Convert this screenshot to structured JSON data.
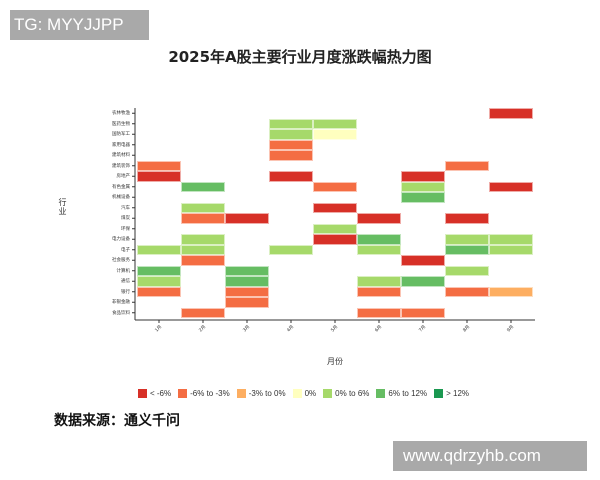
{
  "watermark_top": "TG: MYYJJPP",
  "watermark_bottom": "www.qdrzyhb.com",
  "source_text": "数据来源：通义千问",
  "chart_data": {
    "type": "heatmap",
    "title": "2025年A股主要行业月度涨跌幅热力图",
    "xlabel": "月份",
    "ylabel": "行业",
    "x": [
      "1月",
      "2月",
      "3月",
      "4月",
      "5月",
      "6月",
      "7月",
      "8月",
      "9月"
    ],
    "y": [
      "农林牧渔",
      "医药生物",
      "国防军工",
      "家用电器",
      "建筑材料",
      "建筑装饰",
      "房地产",
      "有色金属",
      "机械设备",
      "汽车",
      "煤炭",
      "环保",
      "电力设备",
      "电子",
      "社会服务",
      "计算机",
      "通信",
      "银行",
      "非银金融",
      "食品饮料"
    ],
    "legend": [
      {
        "key": "lt_-6",
        "label": "< -6%",
        "color": "#d73027"
      },
      {
        "key": "-6_-3",
        "label": "-6% to -3%",
        "color": "#f46d43"
      },
      {
        "key": "-3_0",
        "label": "-3% to 0%",
        "color": "#fdae61"
      },
      {
        "key": "0",
        "label": "0%",
        "color": "#ffffbf"
      },
      {
        "key": "0_6",
        "label": "0% to 6%",
        "color": "#a6d96a"
      },
      {
        "key": "6_12",
        "label": "6% to 12%",
        "color": "#66bd63"
      },
      {
        "key": "gt_12",
        "label": "> 12%",
        "color": "#1a9850"
      }
    ],
    "cells": [
      {
        "month": "1月",
        "industry": "建筑装饰",
        "bin": "-6_-3"
      },
      {
        "month": "1月",
        "industry": "房地产",
        "bin": "lt_-6"
      },
      {
        "month": "1月",
        "industry": "电子",
        "bin": "0_6"
      },
      {
        "month": "1月",
        "industry": "计算机",
        "bin": "6_12"
      },
      {
        "month": "1月",
        "industry": "通信",
        "bin": "0_6"
      },
      {
        "month": "1月",
        "industry": "银行",
        "bin": "-6_-3"
      },
      {
        "month": "2月",
        "industry": "有色金属",
        "bin": "6_12"
      },
      {
        "month": "2月",
        "industry": "汽车",
        "bin": "0_6"
      },
      {
        "month": "2月",
        "industry": "煤炭",
        "bin": "-6_-3"
      },
      {
        "month": "2月",
        "industry": "电力设备",
        "bin": "0_6"
      },
      {
        "month": "2月",
        "industry": "电子",
        "bin": "0_6"
      },
      {
        "month": "2月",
        "industry": "社会服务",
        "bin": "-6_-3"
      },
      {
        "month": "2月",
        "industry": "食品饮料",
        "bin": "-6_-3"
      },
      {
        "month": "3月",
        "industry": "煤炭",
        "bin": "lt_-6"
      },
      {
        "month": "3月",
        "industry": "计算机",
        "bin": "6_12"
      },
      {
        "month": "3月",
        "industry": "通信",
        "bin": "6_12"
      },
      {
        "month": "3月",
        "industry": "银行",
        "bin": "-6_-3"
      },
      {
        "month": "3月",
        "industry": "非银金融",
        "bin": "-6_-3"
      },
      {
        "month": "4月",
        "industry": "医药生物",
        "bin": "0_6"
      },
      {
        "month": "4月",
        "industry": "国防军工",
        "bin": "0_6"
      },
      {
        "month": "4月",
        "industry": "家用电器",
        "bin": "-6_-3"
      },
      {
        "month": "4月",
        "industry": "建筑材料",
        "bin": "-6_-3"
      },
      {
        "month": "4月",
        "industry": "房地产",
        "bin": "lt_-6"
      },
      {
        "month": "4月",
        "industry": "电子",
        "bin": "0_6"
      },
      {
        "month": "5月",
        "industry": "医药生物",
        "bin": "0_6"
      },
      {
        "month": "5月",
        "industry": "国防军工",
        "bin": "0"
      },
      {
        "month": "5月",
        "industry": "有色金属",
        "bin": "-6_-3"
      },
      {
        "month": "5月",
        "industry": "汽车",
        "bin": "lt_-6"
      },
      {
        "month": "5月",
        "industry": "环保",
        "bin": "0_6"
      },
      {
        "month": "5月",
        "industry": "电力设备",
        "bin": "lt_-6"
      },
      {
        "month": "6月",
        "industry": "煤炭",
        "bin": "lt_-6"
      },
      {
        "month": "6月",
        "industry": "电力设备",
        "bin": "6_12"
      },
      {
        "month": "6月",
        "industry": "电子",
        "bin": "0_6"
      },
      {
        "month": "6月",
        "industry": "通信",
        "bin": "0_6"
      },
      {
        "month": "6月",
        "industry": "银行",
        "bin": "-6_-3"
      },
      {
        "month": "6月",
        "industry": "食品饮料",
        "bin": "-6_-3"
      },
      {
        "month": "7月",
        "industry": "房地产",
        "bin": "lt_-6"
      },
      {
        "month": "7月",
        "industry": "有色金属",
        "bin": "0_6"
      },
      {
        "month": "7月",
        "industry": "机械设备",
        "bin": "6_12"
      },
      {
        "month": "7月",
        "industry": "社会服务",
        "bin": "lt_-6"
      },
      {
        "month": "7月",
        "industry": "通信",
        "bin": "6_12"
      },
      {
        "month": "7月",
        "industry": "食品饮料",
        "bin": "-6_-3"
      },
      {
        "month": "8月",
        "industry": "建筑装饰",
        "bin": "-6_-3"
      },
      {
        "month": "8月",
        "industry": "煤炭",
        "bin": "lt_-6"
      },
      {
        "month": "8月",
        "industry": "电力设备",
        "bin": "0_6"
      },
      {
        "month": "8月",
        "industry": "电子",
        "bin": "6_12"
      },
      {
        "month": "8月",
        "industry": "计算机",
        "bin": "0_6"
      },
      {
        "month": "8月",
        "industry": "银行",
        "bin": "-6_-3"
      },
      {
        "month": "9月",
        "industry": "农林牧渔",
        "bin": "lt_-6"
      },
      {
        "month": "9月",
        "industry": "有色金属",
        "bin": "lt_-6"
      },
      {
        "month": "9月",
        "industry": "电力设备",
        "bin": "0_6"
      },
      {
        "month": "9月",
        "industry": "电子",
        "bin": "0_6"
      },
      {
        "month": "9月",
        "industry": "银行",
        "bin": "-3_0"
      }
    ]
  }
}
